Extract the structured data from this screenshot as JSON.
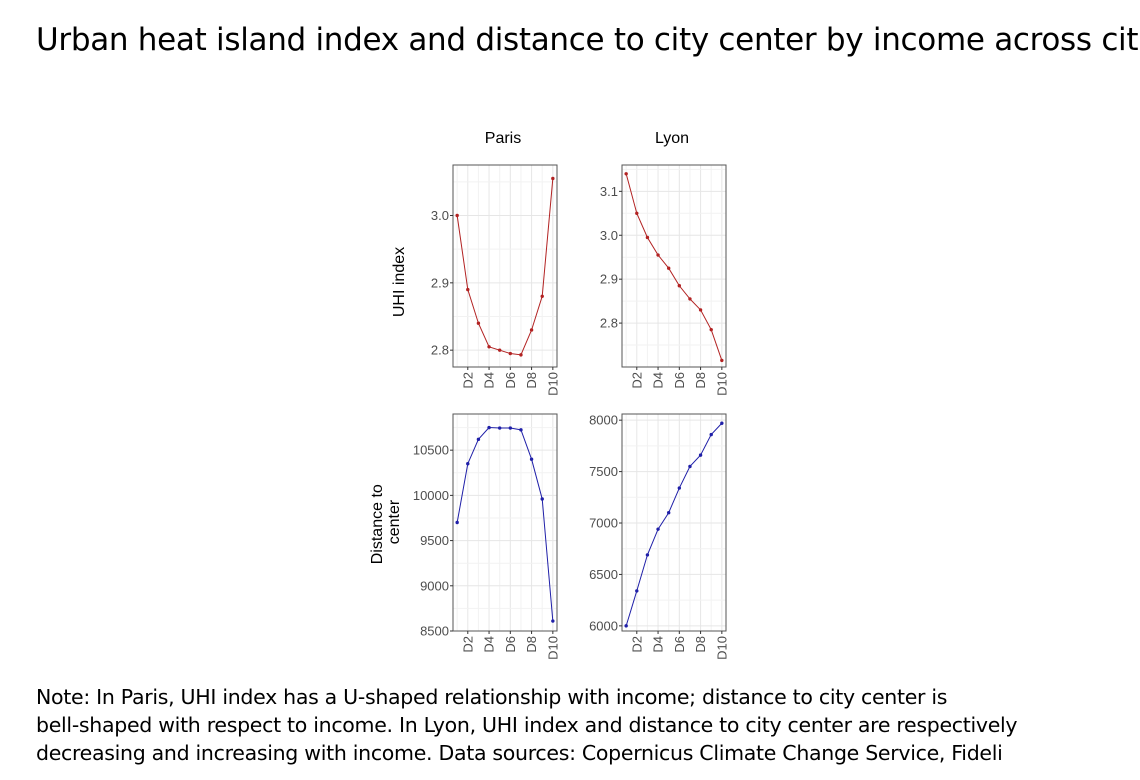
{
  "title": "Urban heat island index and distance to city center by income across cities",
  "note": [
    "Note: In Paris, UHI index has a U-shaped relationship with income; distance to city center is",
    "bell-shaped with respect to income. In Lyon, UHI index and distance to city center are respectively",
    "decreasing and increasing with income. Data sources: Copernicus Climate Change Service, Fideli"
  ],
  "chart_data": [
    {
      "type": "line",
      "facet": "Paris",
      "row_label": "UHI index",
      "color": "#b22222",
      "x": [
        "D1",
        "D2",
        "D3",
        "D4",
        "D5",
        "D6",
        "D7",
        "D8",
        "D9",
        "D10"
      ],
      "x_tick_labels": [
        "D2",
        "D4",
        "D6",
        "D8",
        "D10"
      ],
      "values": [
        3.0,
        2.89,
        2.84,
        2.805,
        2.8,
        2.795,
        2.793,
        2.83,
        2.88,
        3.055
      ],
      "y_ticks": [
        "2.8",
        "2.9",
        "3.0"
      ],
      "ylim": [
        2.775,
        3.075
      ],
      "grid": true
    },
    {
      "type": "line",
      "facet": "Lyon",
      "row_label": "UHI index",
      "color": "#b22222",
      "x": [
        "D1",
        "D2",
        "D3",
        "D4",
        "D5",
        "D6",
        "D7",
        "D8",
        "D9",
        "D10"
      ],
      "x_tick_labels": [
        "D2",
        "D4",
        "D6",
        "D8",
        "D10"
      ],
      "values": [
        3.14,
        3.05,
        2.995,
        2.955,
        2.925,
        2.885,
        2.855,
        2.83,
        2.785,
        2.715
      ],
      "y_ticks": [
        "2.8",
        "2.9",
        "3.0",
        "3.1"
      ],
      "ylim": [
        2.7,
        3.16
      ],
      "grid": true
    },
    {
      "type": "line",
      "facet": "Paris",
      "row_label": "Distance to center",
      "color": "#1f1fa8",
      "x": [
        "D1",
        "D2",
        "D3",
        "D4",
        "D5",
        "D6",
        "D7",
        "D8",
        "D9",
        "D10"
      ],
      "x_tick_labels": [
        "D2",
        "D4",
        "D6",
        "D8",
        "D10"
      ],
      "values": [
        9700,
        10350,
        10620,
        10750,
        10745,
        10745,
        10725,
        10400,
        9960,
        8610
      ],
      "y_ticks": [
        "8500",
        "9000",
        "9500",
        "10000",
        "10500"
      ],
      "ylim": [
        8500,
        10900
      ],
      "grid": true
    },
    {
      "type": "line",
      "facet": "Lyon",
      "row_label": "Distance to center",
      "color": "#1f1fa8",
      "x": [
        "D1",
        "D2",
        "D3",
        "D4",
        "D5",
        "D6",
        "D7",
        "D8",
        "D9",
        "D10"
      ],
      "x_tick_labels": [
        "D2",
        "D4",
        "D6",
        "D8",
        "D10"
      ],
      "values": [
        6000,
        6340,
        6690,
        6940,
        7100,
        7340,
        7550,
        7660,
        7860,
        7970
      ],
      "y_ticks": [
        "6000",
        "6500",
        "7000",
        "7500",
        "8000"
      ],
      "ylim": [
        5950,
        8060
      ],
      "grid": true
    }
  ],
  "facet_titles": [
    "Paris",
    "Lyon"
  ],
  "row_labels": [
    "UHI index",
    "Distance to center"
  ]
}
